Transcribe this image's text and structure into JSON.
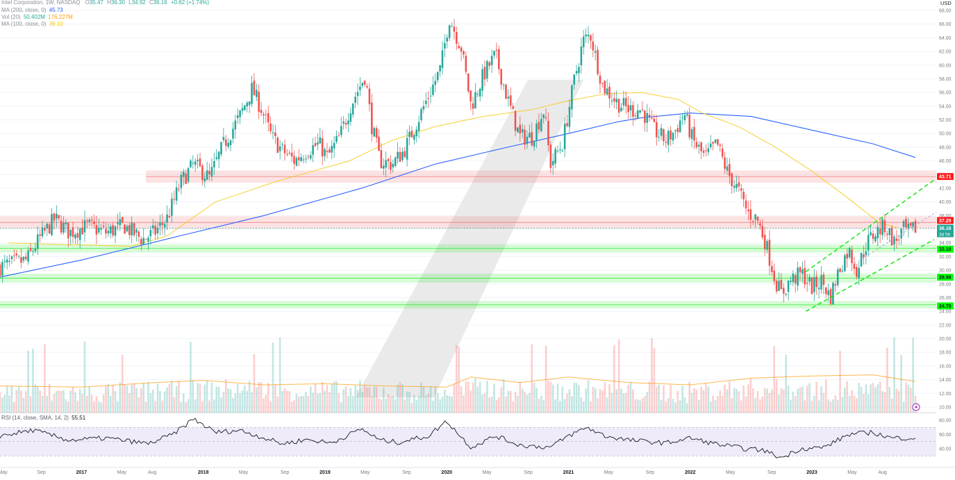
{
  "header": {
    "symbol_line": "Intel Corporation, 1W, NASDAQ",
    "ohlc": [
      {
        "label": "O",
        "value": "35.47"
      },
      {
        "label": "H",
        "value": "36.30"
      },
      {
        "label": "L",
        "value": "34.92"
      },
      {
        "label": "C",
        "value": "36.16"
      }
    ],
    "change": "+0.62 (+1.74%)",
    "indicators": [
      {
        "label": "MA (200, close, 0)",
        "value": "45.73",
        "color": "#2962ff"
      },
      {
        "label": "Vol (20)",
        "value": "50.402M",
        "value2": "176.227M",
        "color": "#26a69a",
        "color2": "#ff9800"
      },
      {
        "label": "MA (100, close, 0)",
        "value": "36.10",
        "color": "#f5c400"
      }
    ]
  },
  "rsi_legend": {
    "label": "RSI (14, close, SMA, 14, 2)",
    "value": "55.51"
  },
  "colors": {
    "up": "#26a69a",
    "down": "#ef5350",
    "ma200": "#2962ff",
    "ma100": "#f5c400",
    "vol_ma": "#ff9800",
    "rsi_line": "#131722",
    "rsi_band": "#7e57c2",
    "resistance_zone": "#ef5350",
    "support_zone": "#00e600",
    "channel": "#00e600"
  },
  "price_axis": {
    "currency": "USD",
    "ticks": [
      "68.00",
      "66.00",
      "64.00",
      "62.00",
      "60.00",
      "58.00",
      "56.00",
      "54.00",
      "52.00",
      "50.00",
      "48.00",
      "46.00",
      "44.00",
      "42.00",
      "40.00",
      "38.00",
      "36.00",
      "34.00",
      "32.00",
      "30.00",
      "28.00",
      "26.00",
      "24.00",
      "22.00",
      "20.00",
      "18.00",
      "16.00",
      "14.00",
      "12.00",
      "10.00"
    ],
    "badges": [
      {
        "value": 43.71,
        "label": "43.71",
        "type": "resistance"
      },
      {
        "value": 37.29,
        "label": "37.29",
        "type": "resistance"
      },
      {
        "value": 36.16,
        "label": "36.16",
        "sub": "3d 5h",
        "type": "last"
      },
      {
        "value": 33.1,
        "label": "33.10",
        "type": "support"
      },
      {
        "value": 28.98,
        "label": "28.98",
        "type": "support"
      },
      {
        "value": 24.79,
        "label": "24.79",
        "type": "support"
      }
    ]
  },
  "rsi_axis": {
    "ticks": [
      "80.00",
      "60.00",
      "40.00"
    ]
  },
  "time_axis": {
    "labels": [
      "May",
      "Sep",
      "2017",
      "May",
      "Aug",
      "2018",
      "May",
      "Sep",
      "2019",
      "May",
      "Sep",
      "2020",
      "May",
      "Sep",
      "2021",
      "May",
      "Sep",
      "2022",
      "May",
      "Sep",
      "2023",
      "May",
      "Aug"
    ]
  },
  "chart_data": {
    "type": "candlestick",
    "timeframe": "1W",
    "symbol": "Intel Corporation, NASDAQ",
    "ylim": [
      9,
      69
    ],
    "zones": [
      {
        "low": 42.8,
        "high": 44.6,
        "type": "resistance"
      },
      {
        "low": 36.1,
        "high": 37.9,
        "type": "resistance"
      },
      {
        "low": 32.6,
        "high": 33.8,
        "type": "support"
      },
      {
        "low": 28.2,
        "high": 29.5,
        "type": "support"
      },
      {
        "low": 24.4,
        "high": 25.5,
        "type": "support"
      }
    ],
    "price_keypoints": [
      [
        2016.33,
        30.5
      ],
      [
        2016.55,
        31.5
      ],
      [
        2016.65,
        34.5
      ],
      [
        2016.78,
        37.5
      ],
      [
        2016.9,
        35.5
      ],
      [
        2017.05,
        36.5
      ],
      [
        2017.2,
        35.5
      ],
      [
        2017.35,
        36.5
      ],
      [
        2017.5,
        34.5
      ],
      [
        2017.6,
        35.5
      ],
      [
        2017.7,
        37.5
      ],
      [
        2017.82,
        43
      ],
      [
        2017.92,
        45.5
      ],
      [
        2018.05,
        43.5
      ],
      [
        2018.17,
        48.5
      ],
      [
        2018.3,
        52.5
      ],
      [
        2018.4,
        56.5
      ],
      [
        2018.48,
        53.5
      ],
      [
        2018.56,
        49.5
      ],
      [
        2018.65,
        47.5
      ],
      [
        2018.75,
        46
      ],
      [
        2018.85,
        47.5
      ],
      [
        2018.95,
        48.5
      ],
      [
        2019.02,
        46.5
      ],
      [
        2019.12,
        49.5
      ],
      [
        2019.22,
        54.5
      ],
      [
        2019.33,
        58.5
      ],
      [
        2019.38,
        51.5
      ],
      [
        2019.45,
        46
      ],
      [
        2019.55,
        45.5
      ],
      [
        2019.65,
        47.5
      ],
      [
        2019.75,
        51.5
      ],
      [
        2019.85,
        55.5
      ],
      [
        2019.95,
        59.5
      ],
      [
        2020.02,
        67
      ],
      [
        2020.12,
        62.5
      ],
      [
        2020.2,
        54
      ],
      [
        2020.3,
        58.5
      ],
      [
        2020.4,
        61.5
      ],
      [
        2020.5,
        55
      ],
      [
        2020.6,
        49.5
      ],
      [
        2020.7,
        49.5
      ],
      [
        2020.8,
        53.5
      ],
      [
        2020.85,
        45.5
      ],
      [
        2020.95,
        48.5
      ],
      [
        2021.05,
        58
      ],
      [
        2021.12,
        63.5
      ],
      [
        2021.18,
        64.5
      ],
      [
        2021.28,
        57
      ],
      [
        2021.4,
        54.5
      ],
      [
        2021.5,
        53.5
      ],
      [
        2021.6,
        53.5
      ],
      [
        2021.7,
        50.5
      ],
      [
        2021.8,
        49
      ],
      [
        2021.88,
        50.5
      ],
      [
        2021.95,
        53
      ],
      [
        2022.02,
        49
      ],
      [
        2022.12,
        46.5
      ],
      [
        2022.22,
        48.5
      ],
      [
        2022.3,
        44.5
      ],
      [
        2022.4,
        41.5
      ],
      [
        2022.47,
        38.5
      ],
      [
        2022.55,
        37.5
      ],
      [
        2022.62,
        34
      ],
      [
        2022.7,
        28.5
      ],
      [
        2022.75,
        26.5
      ],
      [
        2022.82,
        28.5
      ],
      [
        2022.92,
        29.5
      ],
      [
        2023.0,
        27.5
      ],
      [
        2023.08,
        28.5
      ],
      [
        2023.15,
        26
      ],
      [
        2023.22,
        30
      ],
      [
        2023.3,
        33
      ],
      [
        2023.37,
        30
      ],
      [
        2023.45,
        34
      ],
      [
        2023.52,
        35.5
      ],
      [
        2023.6,
        36.5
      ],
      [
        2023.68,
        34
      ],
      [
        2023.75,
        36
      ],
      [
        2023.8,
        35.5
      ],
      [
        2023.85,
        36.16
      ]
    ],
    "ma200_keypoints": [
      [
        2016.33,
        29.0
      ],
      [
        2017.0,
        31.5
      ],
      [
        2017.8,
        35.0
      ],
      [
        2018.5,
        38.0
      ],
      [
        2019.3,
        42.0
      ],
      [
        2019.9,
        45.5
      ],
      [
        2020.5,
        48.0
      ],
      [
        2021.0,
        50.0
      ],
      [
        2021.4,
        51.7
      ],
      [
        2021.6,
        52.3
      ],
      [
        2022.0,
        53.0
      ],
      [
        2022.5,
        52.5
      ],
      [
        2023.0,
        50.5
      ],
      [
        2023.5,
        48.5
      ],
      [
        2023.85,
        46.5
      ]
    ],
    "ma100_keypoints": [
      [
        2016.4,
        34.0
      ],
      [
        2017.4,
        33.5
      ],
      [
        2017.7,
        35.0
      ],
      [
        2018.1,
        40.0
      ],
      [
        2018.6,
        43.0
      ],
      [
        2019.2,
        46.0
      ],
      [
        2019.55,
        49.0
      ],
      [
        2019.9,
        51.0
      ],
      [
        2020.3,
        52.5
      ],
      [
        2020.7,
        53.5
      ],
      [
        2021.0,
        54.8
      ],
      [
        2021.3,
        55.8
      ],
      [
        2021.6,
        56.0
      ],
      [
        2021.9,
        55.0
      ],
      [
        2022.1,
        53.0
      ],
      [
        2022.4,
        51.0
      ],
      [
        2022.7,
        48.0
      ],
      [
        2023.0,
        44.5
      ],
      [
        2023.3,
        40.5
      ],
      [
        2023.55,
        37.0
      ],
      [
        2023.7,
        36.2
      ]
    ],
    "rsi_keypoints": [
      [
        2016.33,
        58
      ],
      [
        2016.6,
        66
      ],
      [
        2016.9,
        52
      ],
      [
        2017.2,
        55
      ],
      [
        2017.55,
        47
      ],
      [
        2017.75,
        60
      ],
      [
        2017.92,
        82
      ],
      [
        2018.1,
        63
      ],
      [
        2018.3,
        66
      ],
      [
        2018.45,
        58
      ],
      [
        2018.65,
        47
      ],
      [
        2018.85,
        53
      ],
      [
        2019.05,
        48
      ],
      [
        2019.3,
        68
      ],
      [
        2019.45,
        52
      ],
      [
        2019.6,
        49
      ],
      [
        2019.85,
        58
      ],
      [
        2020.0,
        79
      ],
      [
        2020.1,
        60
      ],
      [
        2020.2,
        42
      ],
      [
        2020.4,
        58
      ],
      [
        2020.6,
        45
      ],
      [
        2020.85,
        42
      ],
      [
        2021.0,
        58
      ],
      [
        2021.15,
        70
      ],
      [
        2021.3,
        58
      ],
      [
        2021.5,
        52
      ],
      [
        2021.8,
        48
      ],
      [
        2022.0,
        55
      ],
      [
        2022.2,
        47
      ],
      [
        2022.45,
        40
      ],
      [
        2022.6,
        38
      ],
      [
        2022.75,
        27
      ],
      [
        2022.9,
        40
      ],
      [
        2023.1,
        42
      ],
      [
        2023.3,
        60
      ],
      [
        2023.5,
        63
      ],
      [
        2023.65,
        55
      ],
      [
        2023.85,
        55.51
      ]
    ],
    "volume_keypoints": [
      [
        2016.33,
        14
      ],
      [
        2017.0,
        13
      ],
      [
        2017.8,
        15
      ],
      [
        2018.3,
        17
      ],
      [
        2019.0,
        15
      ],
      [
        2019.5,
        15
      ],
      [
        2020.0,
        14
      ],
      [
        2020.3,
        18
      ],
      [
        2020.6,
        15
      ],
      [
        2021.0,
        16
      ],
      [
        2021.5,
        15
      ],
      [
        2022.0,
        14
      ],
      [
        2022.5,
        17
      ],
      [
        2023.0,
        16
      ],
      [
        2023.85,
        15
      ]
    ],
    "volume_ma_keypoints": [
      [
        2016.33,
        24
      ],
      [
        2017.0,
        23
      ],
      [
        2017.6,
        27
      ],
      [
        2018.0,
        29
      ],
      [
        2018.5,
        25
      ],
      [
        2019.0,
        26
      ],
      [
        2019.5,
        24
      ],
      [
        2020.0,
        23
      ],
      [
        2020.2,
        32
      ],
      [
        2020.6,
        27
      ],
      [
        2021.0,
        32
      ],
      [
        2021.5,
        27
      ],
      [
        2022.0,
        25
      ],
      [
        2022.5,
        31
      ],
      [
        2023.0,
        33
      ],
      [
        2023.5,
        34
      ],
      [
        2023.85,
        28
      ]
    ]
  }
}
